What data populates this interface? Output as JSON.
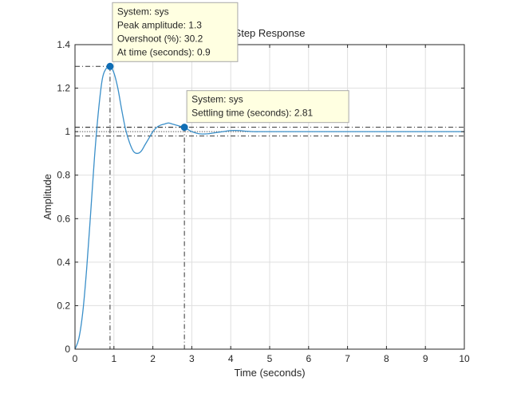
{
  "chart_data": {
    "type": "line",
    "title": "Step Response",
    "xlabel": "Time (seconds)",
    "ylabel": "Amplitude",
    "xlim": [
      0,
      10
    ],
    "ylim": [
      0,
      1.4
    ],
    "grid": true,
    "x_ticks": [
      0,
      1,
      2,
      3,
      4,
      5,
      6,
      7,
      8,
      9,
      10
    ],
    "x_tick_labels": [
      "0",
      "1",
      "2",
      "3",
      "4",
      "5",
      "6",
      "7",
      "8",
      "9",
      "10"
    ],
    "y_ticks": [
      0,
      0.2,
      0.4,
      0.6,
      0.8,
      1,
      1.2,
      1.4
    ],
    "y_tick_labels": [
      "0",
      "0.2",
      "0.4",
      "0.6",
      "0.8",
      "1",
      "1.2",
      "1.4"
    ],
    "series": [
      {
        "color": "#3a8fc9",
        "x": [
          0,
          0.1,
          0.2,
          0.3,
          0.4,
          0.5,
          0.6,
          0.7,
          0.8,
          0.9,
          1.0,
          1.1,
          1.2,
          1.3,
          1.4,
          1.5,
          1.6,
          1.7,
          1.8,
          1.9,
          2.0,
          2.1,
          2.2,
          2.3,
          2.4,
          2.5,
          2.6,
          2.7,
          2.8,
          2.9,
          3.0,
          3.2,
          3.4,
          3.6,
          3.8,
          4.0,
          4.2,
          4.4,
          4.6,
          4.8,
          5.0,
          5.5,
          6.0,
          7.0,
          8.0,
          9.0,
          10.0
        ],
        "values": [
          0,
          0.05,
          0.17,
          0.37,
          0.62,
          0.88,
          1.09,
          1.24,
          1.29,
          1.3,
          1.27,
          1.2,
          1.1,
          1.01,
          0.95,
          0.91,
          0.9,
          0.91,
          0.94,
          0.97,
          1.0,
          1.02,
          1.03,
          1.035,
          1.04,
          1.035,
          1.03,
          1.025,
          1.02,
          1.01,
          1.0,
          0.99,
          0.99,
          0.995,
          1.0,
          1.005,
          1.005,
          1.002,
          1.0,
          1.0,
          1.0,
          1.0,
          1.0,
          1.0,
          1.0,
          1.0,
          1.0
        ]
      }
    ],
    "reference_lines": {
      "settling_band_upper": 1.02,
      "settling_band_lower": 0.98,
      "final_value": 1.0
    },
    "markers": [
      {
        "x": 0.9,
        "y": 1.3,
        "color": "#0f6db5",
        "lines": [
          "System: sys",
          "Peak amplitude: 1.3",
          "Overshoot (%): 30.2",
          "At time (seconds): 0.9"
        ]
      },
      {
        "x": 2.81,
        "y": 1.02,
        "color": "#0f6db5",
        "lines": [
          "System: sys",
          "Settling time (seconds): 2.81"
        ]
      }
    ]
  }
}
